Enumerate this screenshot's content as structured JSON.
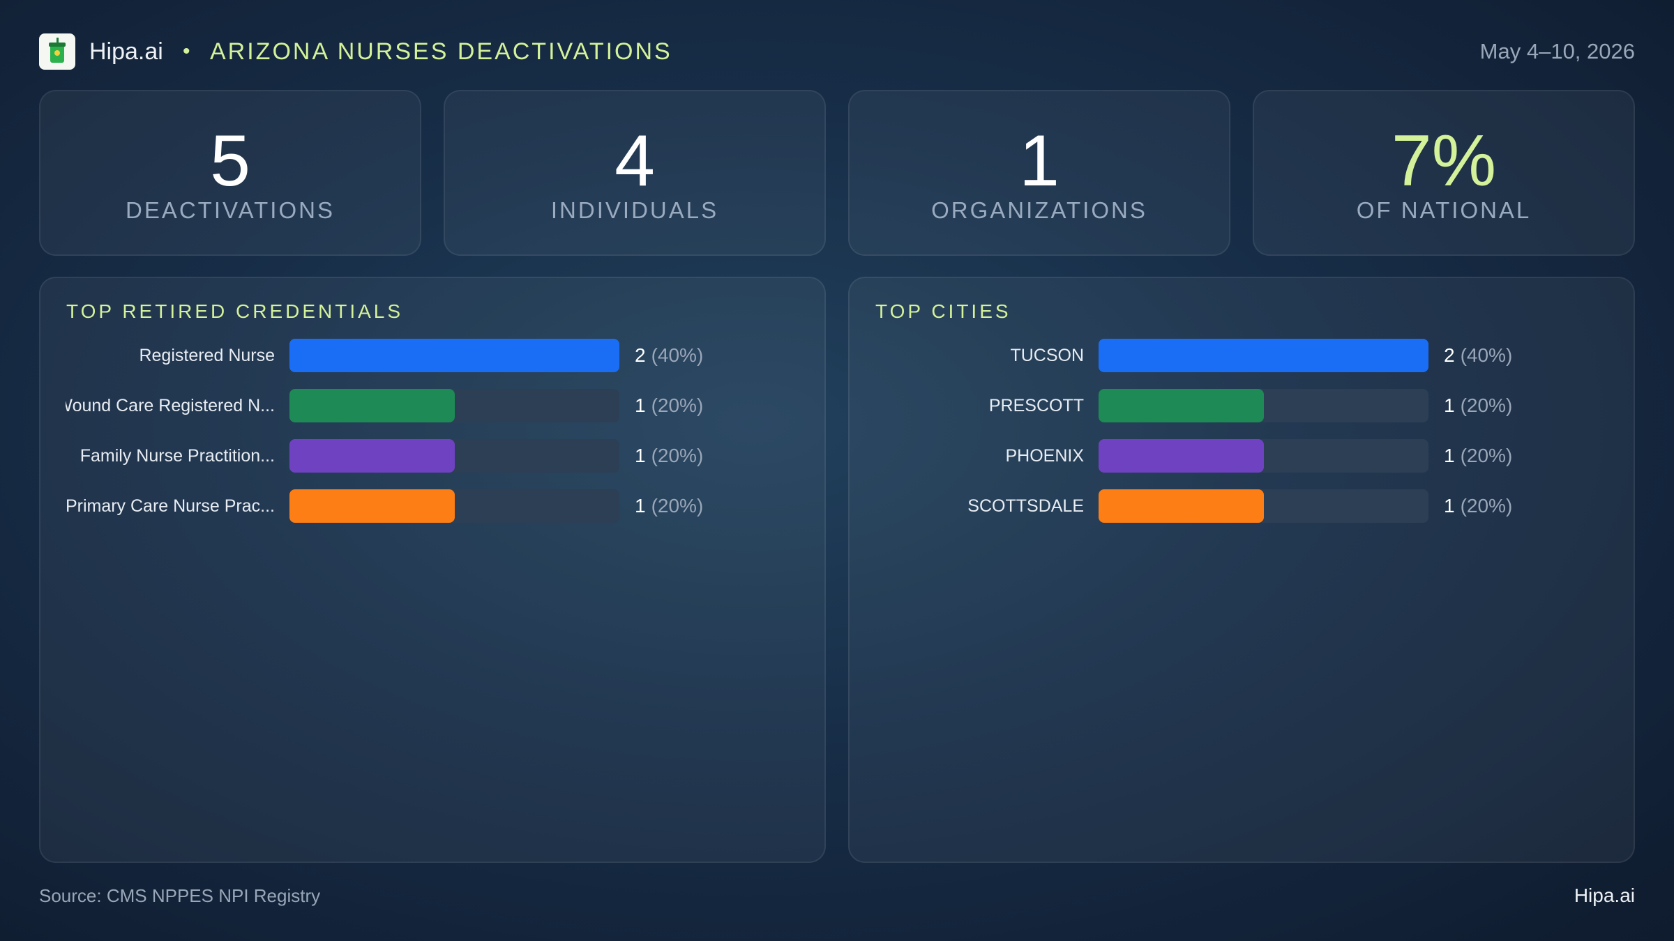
{
  "header": {
    "brand": "Hipa.ai",
    "title": "ARIZONA NURSES DEACTIVATIONS",
    "date": "May 4–10, 2026"
  },
  "kpis": [
    {
      "value": 5,
      "label": "DEACTIVATIONS"
    },
    {
      "value": 4,
      "label": "INDIVIDUALS"
    },
    {
      "value": 1,
      "label": "ORGANIZATIONS"
    },
    {
      "value": "7%",
      "label": "OF NATIONAL"
    }
  ],
  "chart_data": [
    {
      "type": "bar",
      "title": "TOP RETIRED CREDENTIALS",
      "categories": [
        "Registered Nurse",
        "Wound Care Registered N...",
        "Family Nurse Practition...",
        "Primary Care Nurse Prac..."
      ],
      "values": [
        2,
        1,
        1,
        1
      ],
      "share_labels": [
        "(40%)",
        "(20%)",
        "(20%)",
        "(20%)"
      ],
      "colors": [
        "#1a6ef5",
        "#1e8a55",
        "#6f42c1",
        "#fd7e14"
      ],
      "xlim": [
        0,
        2
      ]
    },
    {
      "type": "bar",
      "title": "TOP CITIES",
      "categories": [
        "TUCSON",
        "PRESCOTT",
        "PHOENIX",
        "SCOTTSDALE"
      ],
      "values": [
        2,
        1,
        1,
        1
      ],
      "share_labels": [
        "(40%)",
        "(20%)",
        "(20%)",
        "(20%)"
      ],
      "colors": [
        "#1a6ef5",
        "#1e8a55",
        "#6f42c1",
        "#fd7e14"
      ],
      "xlim": [
        0,
        2
      ]
    }
  ],
  "footer": {
    "source": "Source: CMS NPPES NPI Registry",
    "brand": "Hipa.ai"
  }
}
